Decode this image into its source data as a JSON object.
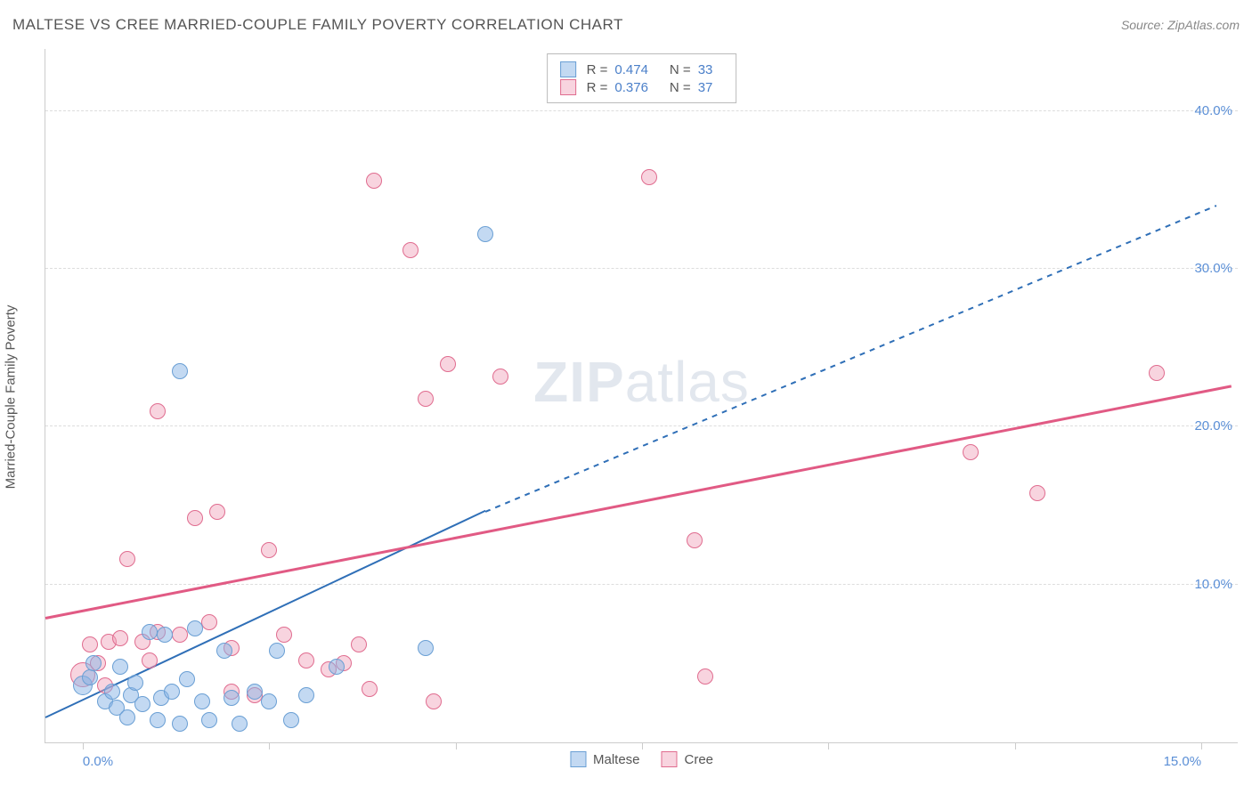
{
  "title": "MALTESE VS CREE MARRIED-COUPLE FAMILY POVERTY CORRELATION CHART",
  "source": "Source: ZipAtlas.com",
  "ylabel": "Married-Couple Family Poverty",
  "watermark_zip": "ZIP",
  "watermark_atlas": "atlas",
  "chart": {
    "type": "scatter",
    "background_color": "#ffffff",
    "grid_color": "#dddddd",
    "axis_color": "#cccccc",
    "tick_label_color": "#5b8fd6",
    "xlim": [
      -0.5,
      15.5
    ],
    "ylim": [
      0,
      44
    ],
    "yticks": [
      10,
      20,
      30,
      40
    ],
    "ytick_labels": [
      "10.0%",
      "20.0%",
      "30.0%",
      "40.0%"
    ],
    "x_minor_ticks": [
      0,
      2.5,
      5,
      7.5,
      10,
      12.5,
      15
    ],
    "x_labels": [
      {
        "x": 0,
        "label": "0.0%"
      },
      {
        "x": 15,
        "label": "15.0%"
      }
    ],
    "point_radius": 9,
    "series": {
      "maltese": {
        "label": "Maltese",
        "fill": "rgba(135, 180, 230, 0.5)",
        "stroke": "#6a9fd4",
        "R": "0.474",
        "N": "33",
        "trend": {
          "x1": -0.5,
          "y1": 1.5,
          "x2": 5.4,
          "y2": 14.6,
          "x2_ext": 15.2,
          "y2_ext": 34,
          "color": "#2f6fb7",
          "width": 2
        },
        "points": [
          {
            "x": 0.0,
            "y": 3.6,
            "r": 11
          },
          {
            "x": 0.1,
            "y": 4.1
          },
          {
            "x": 0.15,
            "y": 5.0
          },
          {
            "x": 0.3,
            "y": 2.6
          },
          {
            "x": 0.4,
            "y": 3.2
          },
          {
            "x": 0.45,
            "y": 2.2
          },
          {
            "x": 0.5,
            "y": 4.8
          },
          {
            "x": 0.6,
            "y": 1.6
          },
          {
            "x": 0.65,
            "y": 3.0
          },
          {
            "x": 0.7,
            "y": 3.8
          },
          {
            "x": 0.8,
            "y": 2.4
          },
          {
            "x": 0.9,
            "y": 7.0
          },
          {
            "x": 1.0,
            "y": 1.4
          },
          {
            "x": 1.05,
            "y": 2.8
          },
          {
            "x": 1.1,
            "y": 6.8
          },
          {
            "x": 1.2,
            "y": 3.2
          },
          {
            "x": 1.3,
            "y": 1.2
          },
          {
            "x": 1.4,
            "y": 4.0
          },
          {
            "x": 1.5,
            "y": 7.2
          },
          {
            "x": 1.6,
            "y": 2.6
          },
          {
            "x": 1.7,
            "y": 1.4
          },
          {
            "x": 1.9,
            "y": 5.8
          },
          {
            "x": 2.0,
            "y": 2.8
          },
          {
            "x": 2.1,
            "y": 1.2
          },
          {
            "x": 1.3,
            "y": 23.5
          },
          {
            "x": 2.3,
            "y": 3.2
          },
          {
            "x": 2.5,
            "y": 2.6
          },
          {
            "x": 2.6,
            "y": 5.8
          },
          {
            "x": 2.8,
            "y": 1.4
          },
          {
            "x": 3.0,
            "y": 3.0
          },
          {
            "x": 3.4,
            "y": 4.8
          },
          {
            "x": 4.6,
            "y": 6.0
          },
          {
            "x": 5.4,
            "y": 32.2
          }
        ]
      },
      "cree": {
        "label": "Cree",
        "fill": "rgba(240, 160, 185, 0.45)",
        "stroke": "#e06c8f",
        "R": "0.376",
        "N": "37",
        "trend": {
          "x1": -0.5,
          "y1": 7.8,
          "x2": 15.4,
          "y2": 22.5,
          "color": "#e15a84",
          "width": 2.5
        },
        "points": [
          {
            "x": 0.0,
            "y": 4.3,
            "r": 14
          },
          {
            "x": 0.1,
            "y": 6.2
          },
          {
            "x": 0.2,
            "y": 5.0
          },
          {
            "x": 0.3,
            "y": 3.6
          },
          {
            "x": 0.35,
            "y": 6.4
          },
          {
            "x": 0.5,
            "y": 6.6
          },
          {
            "x": 0.6,
            "y": 11.6
          },
          {
            "x": 0.8,
            "y": 6.4
          },
          {
            "x": 0.9,
            "y": 5.2
          },
          {
            "x": 1.0,
            "y": 7.0
          },
          {
            "x": 1.0,
            "y": 21.0
          },
          {
            "x": 1.3,
            "y": 6.8
          },
          {
            "x": 1.5,
            "y": 14.2
          },
          {
            "x": 1.7,
            "y": 7.6
          },
          {
            "x": 1.8,
            "y": 14.6
          },
          {
            "x": 2.0,
            "y": 6.0
          },
          {
            "x": 2.0,
            "y": 3.2
          },
          {
            "x": 2.3,
            "y": 3.0
          },
          {
            "x": 2.5,
            "y": 12.2
          },
          {
            "x": 2.7,
            "y": 6.8
          },
          {
            "x": 3.0,
            "y": 5.2
          },
          {
            "x": 3.3,
            "y": 4.6
          },
          {
            "x": 3.5,
            "y": 5.0
          },
          {
            "x": 3.7,
            "y": 6.2
          },
          {
            "x": 3.85,
            "y": 3.4
          },
          {
            "x": 3.9,
            "y": 35.6
          },
          {
            "x": 4.4,
            "y": 31.2
          },
          {
            "x": 4.6,
            "y": 21.8
          },
          {
            "x": 4.7,
            "y": 2.6
          },
          {
            "x": 4.9,
            "y": 24.0
          },
          {
            "x": 5.6,
            "y": 23.2
          },
          {
            "x": 7.6,
            "y": 35.8
          },
          {
            "x": 8.2,
            "y": 12.8
          },
          {
            "x": 8.35,
            "y": 4.2
          },
          {
            "x": 11.9,
            "y": 18.4
          },
          {
            "x": 12.8,
            "y": 15.8
          },
          {
            "x": 14.4,
            "y": 23.4
          }
        ]
      }
    }
  },
  "legend_bottom": [
    "Maltese",
    "Cree"
  ]
}
